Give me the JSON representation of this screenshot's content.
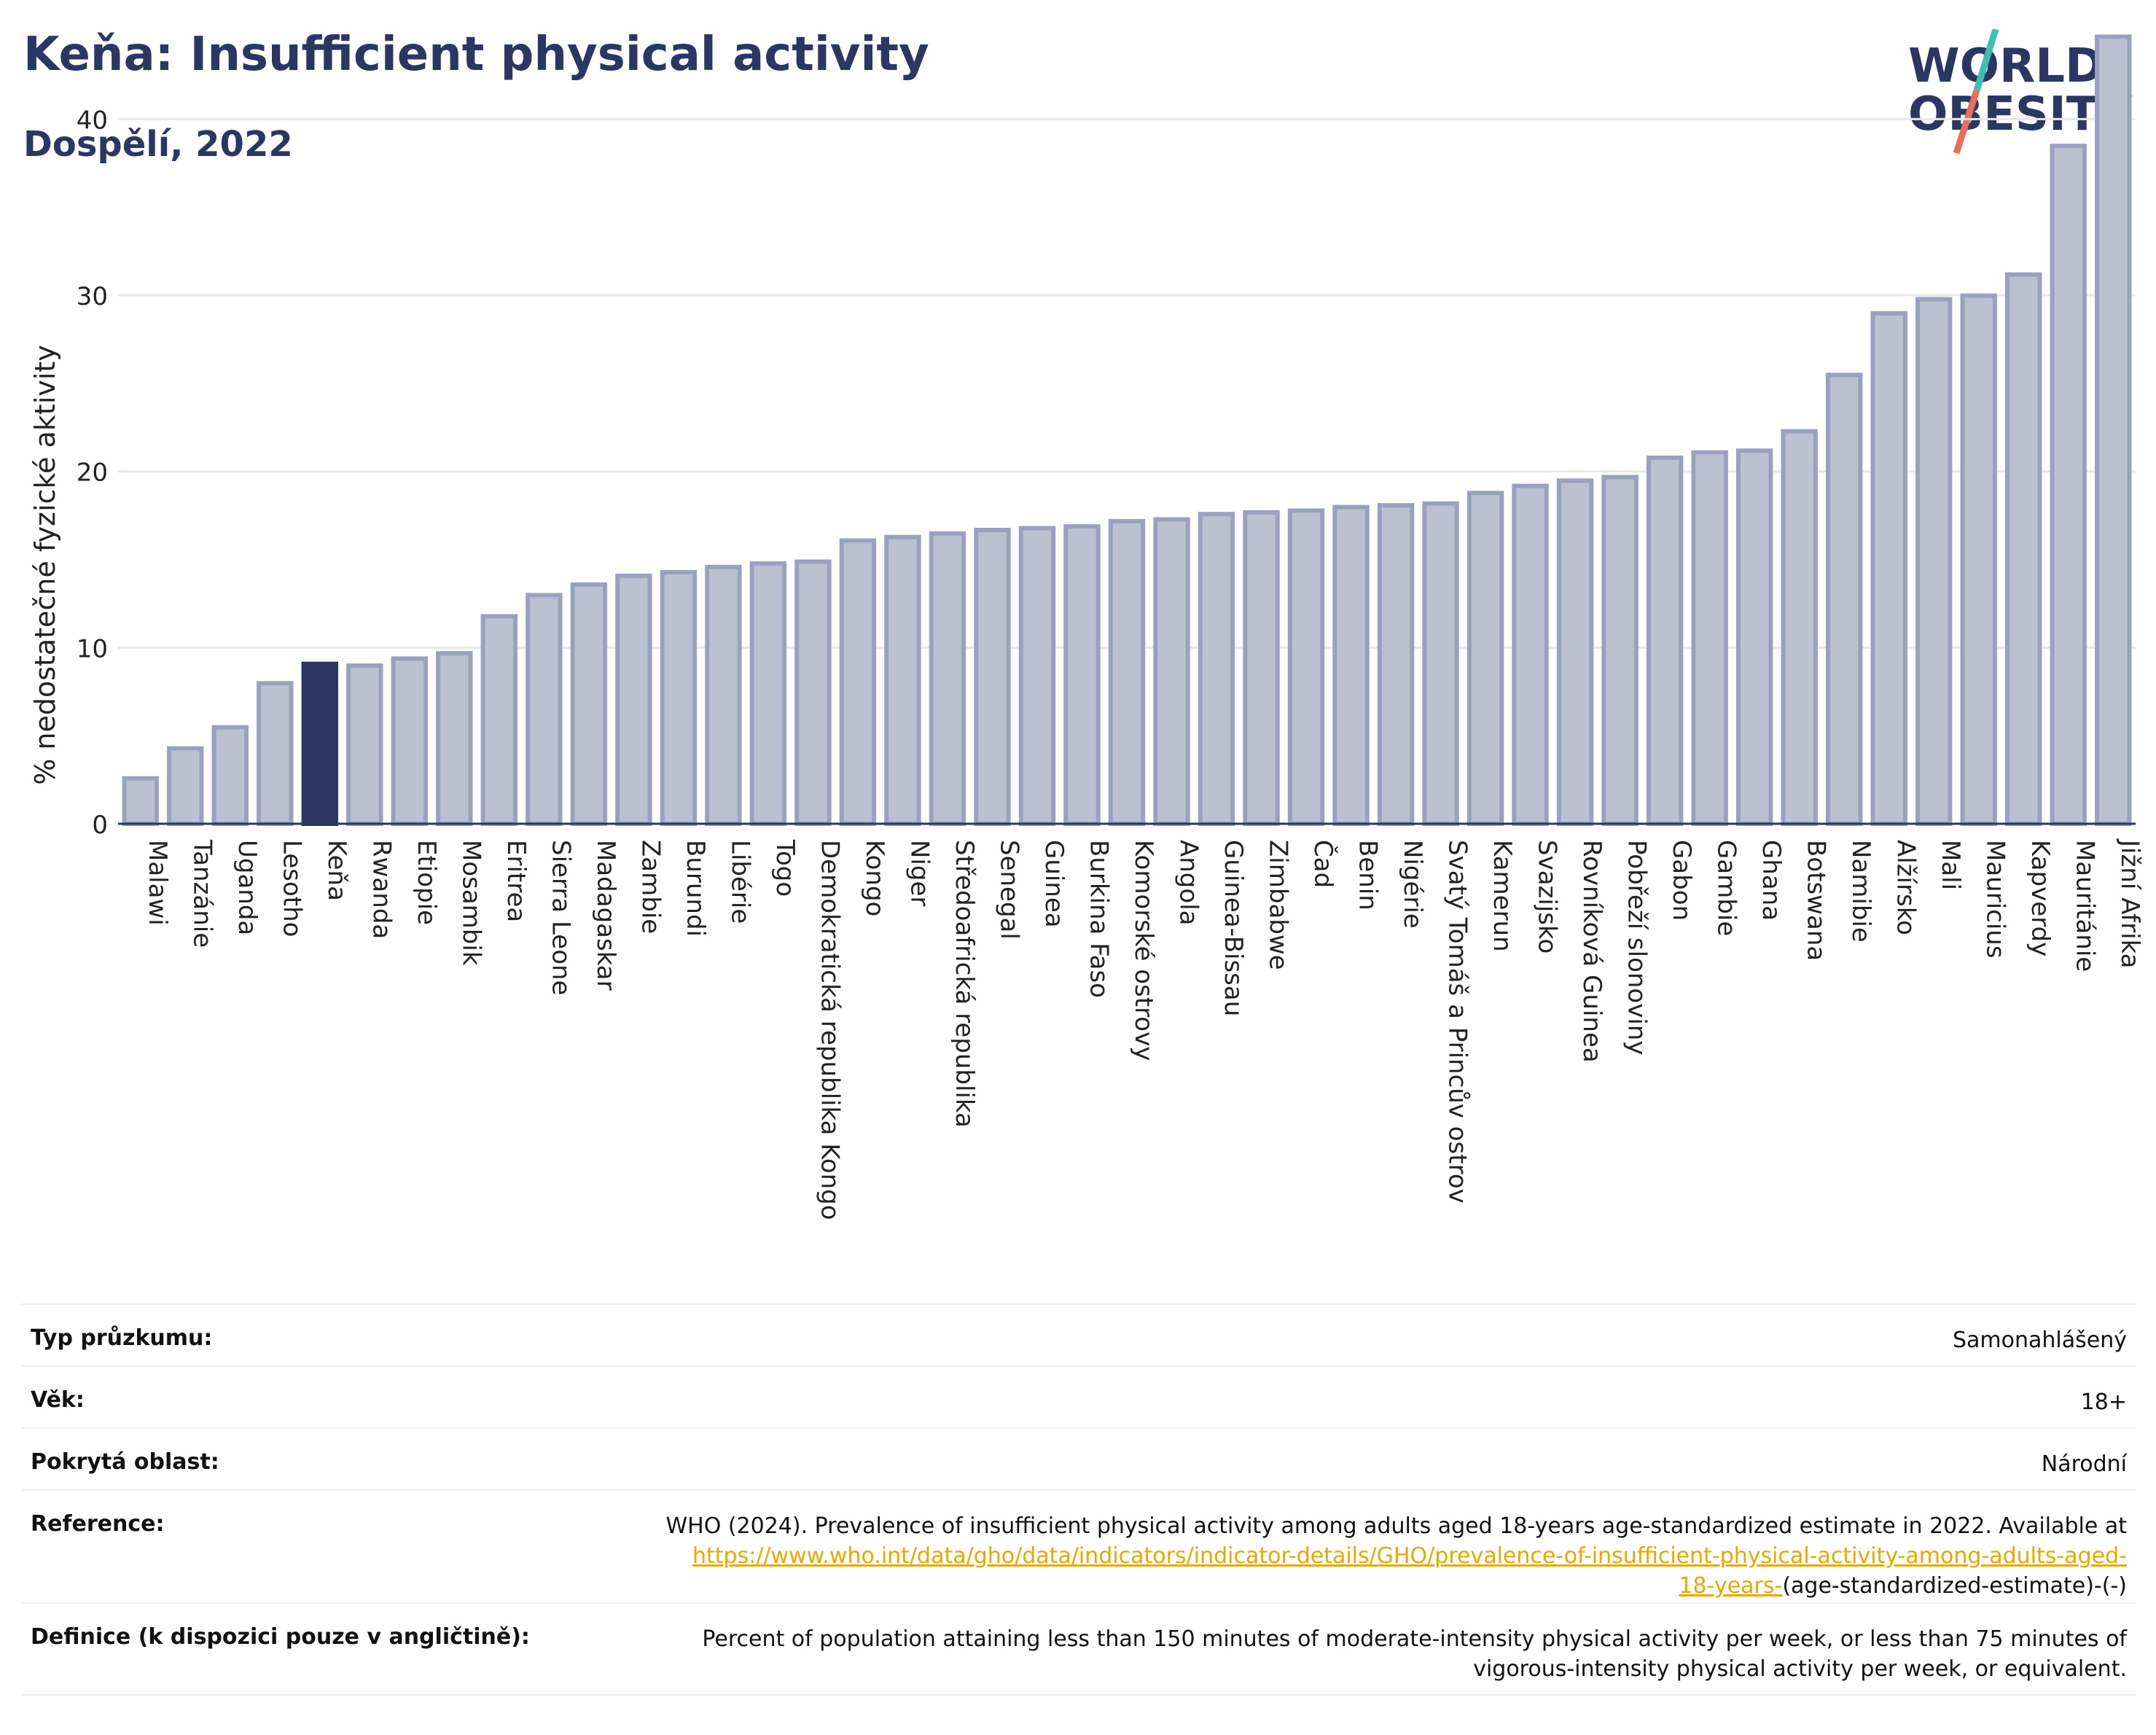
{
  "header": {
    "title": "Keňa: Insufficient physical activity",
    "subtitle": "Dospělí, 2022"
  },
  "logo": {
    "line1": "WORLD",
    "line2": "OBESITY",
    "text_color": "#2b3763",
    "slash_colors": [
      "#3fbfb4",
      "#e8705a"
    ]
  },
  "chart_data": {
    "type": "bar",
    "ylabel": "% nedostatečné fyzické aktivity",
    "ylim": [
      0,
      45
    ],
    "yticks": [
      0,
      10,
      20,
      30,
      40
    ],
    "grid": true,
    "highlight": "Keňa",
    "colors": {
      "bar": "#bcc1d1",
      "bar_edge": "#9aa1bc",
      "highlight": "#2b3763",
      "grid": "#e8e8e8"
    },
    "categories": [
      "Malawi",
      "Tanzánie",
      "Uganda",
      "Lesotho",
      "Keňa",
      "Rwanda",
      "Etiopie",
      "Mosambik",
      "Eritrea",
      "Sierra Leone",
      "Madagaskar",
      "Zambie",
      "Burundi",
      "Libérie",
      "Togo",
      "Demokratická republika Kongo",
      "Kongo",
      "Niger",
      "Středoafrická republika",
      "Senegal",
      "Guinea",
      "Burkina Faso",
      "Komorské ostrovy",
      "Angola",
      "Guinea-Bissau",
      "Zimbabwe",
      "Čad",
      "Benin",
      "Nigérie",
      "Svatý Tomáš a Princův ostrov",
      "Kamerun",
      "Svazijsko",
      "Rovníková Guinea",
      "Pobřeží slonoviny",
      "Gabon",
      "Gambie",
      "Ghana",
      "Botswana",
      "Namibie",
      "Alžírsko",
      "Mali",
      "Mauricius",
      "Kapverdy",
      "Mauritánie",
      "Jižní Afrika"
    ],
    "values": [
      2.7,
      4.4,
      5.6,
      8.1,
      9.2,
      9.1,
      9.5,
      9.8,
      11.9,
      13.1,
      13.7,
      14.2,
      14.4,
      14.7,
      14.9,
      15.0,
      16.2,
      16.4,
      16.6,
      16.8,
      16.9,
      17.0,
      17.3,
      17.4,
      17.7,
      17.8,
      17.9,
      18.1,
      18.2,
      18.3,
      18.9,
      19.3,
      19.6,
      19.8,
      20.9,
      21.2,
      21.3,
      22.4,
      25.6,
      29.1,
      29.9,
      30.1,
      31.3,
      38.6,
      44.8
    ]
  },
  "info": {
    "survey_type": {
      "label": "Typ průzkumu:",
      "value": "Samonahlášený"
    },
    "age": {
      "label": "Věk:",
      "value": "18+"
    },
    "coverage": {
      "label": "Pokrytá oblast:",
      "value": "Národní"
    },
    "reference": {
      "label": "Reference:",
      "text": "WHO (2024). Prevalence of insufficient physical activity among adults aged 18-years age-standardized estimate in 2022. Available at",
      "link_part1": "https://www.who.int/data/gho/data/indicators/indicator-details/GHO/prevalence-of-insufficient-physical-activity-among-adults-aged-",
      "link_part2": "18-years-",
      "suffix": "(age-standardized-estimate)-(-)"
    },
    "definition": {
      "label": "Definice (k dispozici pouze v angličtině):",
      "line1": "Percent of population attaining less than 150 minutes of moderate-intensity physical activity per week, or less than 75 minutes of",
      "line2": "vigorous-intensity physical activity per week, or equivalent."
    }
  }
}
